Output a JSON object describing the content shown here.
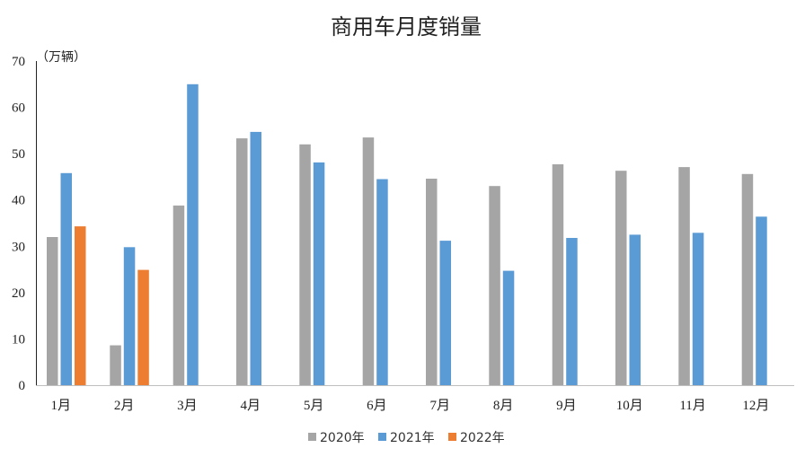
{
  "chart_data": {
    "type": "bar",
    "title": "商用车月度销量",
    "unit_label": "（万辆）",
    "categories": [
      "1月",
      "2月",
      "3月",
      "4月",
      "5月",
      "6月",
      "7月",
      "8月",
      "9月",
      "10月",
      "11月",
      "12月"
    ],
    "series": [
      {
        "name": "2020年",
        "color": "#a5a5a5",
        "values": [
          32.0,
          8.6,
          38.8,
          53.3,
          52.0,
          53.5,
          44.6,
          43.0,
          47.7,
          46.3,
          47.1,
          45.6
        ]
      },
      {
        "name": "2021年",
        "color": "#5b9bd5",
        "values": [
          45.8,
          29.8,
          65.0,
          54.7,
          48.1,
          44.5,
          31.2,
          24.7,
          31.8,
          32.5,
          32.9,
          36.4
        ]
      },
      {
        "name": "2022年",
        "color": "#ed7d31",
        "values": [
          34.3,
          24.9,
          null,
          null,
          null,
          null,
          null,
          null,
          null,
          null,
          null,
          null
        ]
      }
    ],
    "ylim": [
      0,
      70
    ],
    "yticks": [
      0,
      10,
      20,
      30,
      40,
      50,
      60,
      70
    ],
    "grid": false,
    "legend_position": "bottom"
  }
}
